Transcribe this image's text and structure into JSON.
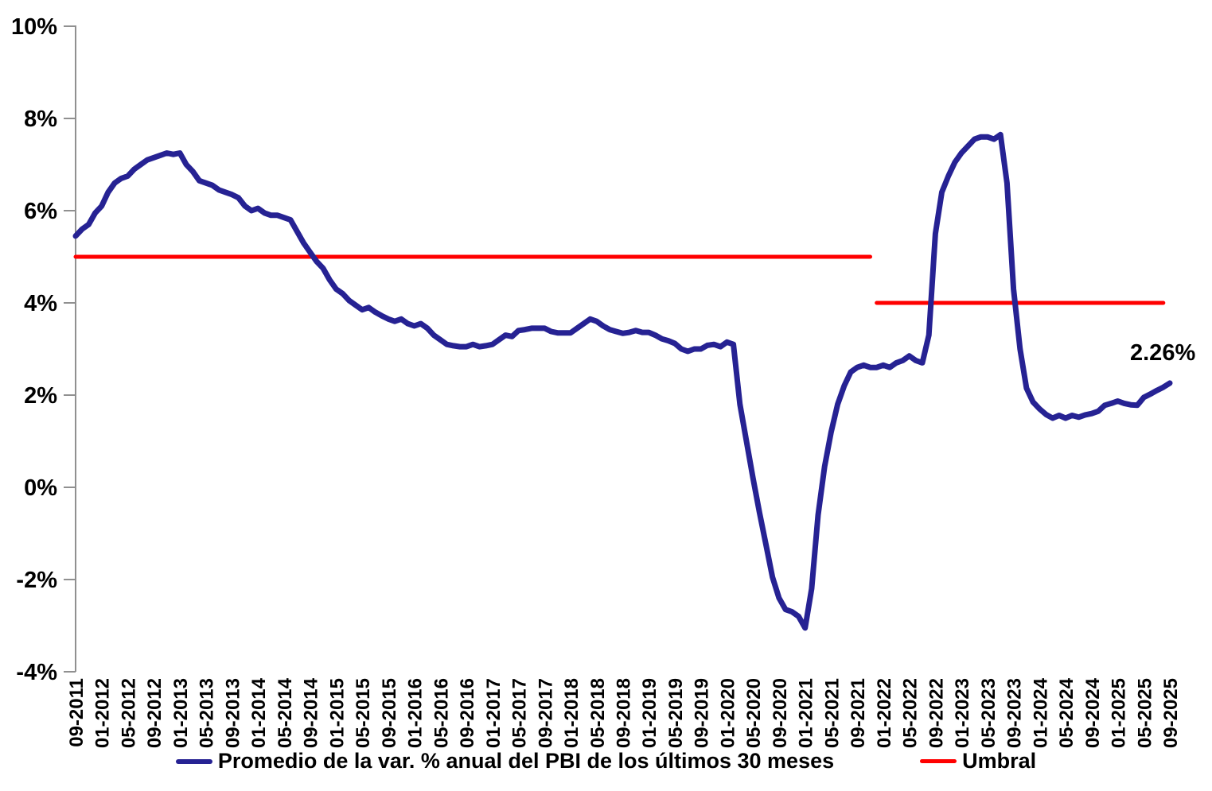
{
  "chart_data": {
    "type": "line",
    "title": "",
    "frequency": "monthly",
    "start_month": "09-2011",
    "end_month": "09-2025",
    "series": [
      {
        "name": "Promedio de la var. % anual del PBI de los últimos 30 meses",
        "color": "#262293",
        "values": [
          5.45,
          5.6,
          5.7,
          5.95,
          6.1,
          6.4,
          6.6,
          6.7,
          6.75,
          6.9,
          7.0,
          7.1,
          7.15,
          7.2,
          7.25,
          7.22,
          7.25,
          7.0,
          6.85,
          6.65,
          6.6,
          6.55,
          6.45,
          6.4,
          6.35,
          6.28,
          6.1,
          6.0,
          6.05,
          5.95,
          5.9,
          5.9,
          5.85,
          5.8,
          5.55,
          5.3,
          5.1,
          4.9,
          4.75,
          4.5,
          4.3,
          4.2,
          4.05,
          3.95,
          3.85,
          3.9,
          3.8,
          3.72,
          3.65,
          3.6,
          3.65,
          3.55,
          3.5,
          3.55,
          3.45,
          3.3,
          3.2,
          3.1,
          3.07,
          3.05,
          3.05,
          3.1,
          3.05,
          3.07,
          3.1,
          3.2,
          3.3,
          3.27,
          3.4,
          3.42,
          3.45,
          3.45,
          3.45,
          3.38,
          3.35,
          3.35,
          3.35,
          3.45,
          3.55,
          3.65,
          3.6,
          3.5,
          3.42,
          3.38,
          3.34,
          3.36,
          3.4,
          3.36,
          3.36,
          3.3,
          3.22,
          3.18,
          3.12,
          3.0,
          2.95,
          3.0,
          3.0,
          3.08,
          3.1,
          3.05,
          3.15,
          3.1,
          1.8,
          1.0,
          0.2,
          -0.55,
          -1.25,
          -1.95,
          -2.4,
          -2.65,
          -2.7,
          -2.8,
          -3.05,
          -2.2,
          -0.6,
          0.45,
          1.2,
          1.8,
          2.2,
          2.5,
          2.6,
          2.65,
          2.6,
          2.6,
          2.65,
          2.6,
          2.7,
          2.75,
          2.85,
          2.75,
          2.7,
          3.3,
          5.5,
          6.4,
          6.75,
          7.05,
          7.25,
          7.4,
          7.55,
          7.6,
          7.6,
          7.55,
          7.65,
          6.6,
          4.3,
          3.0,
          2.15,
          1.85,
          1.7,
          1.58,
          1.5,
          1.56,
          1.5,
          1.56,
          1.52,
          1.57,
          1.6,
          1.65,
          1.78,
          1.82,
          1.87,
          1.82,
          1.79,
          1.78,
          1.95,
          2.02,
          2.1,
          2.17,
          2.26
        ]
      }
    ],
    "threshold_segments": [
      {
        "name": "Umbral",
        "value": 5.0,
        "from": "09-2011",
        "to": "11-2021",
        "color": "#FF0000"
      },
      {
        "name": "Umbral",
        "value": 4.0,
        "from": "12-2021",
        "to": "08-2025",
        "color": "#FF0000"
      }
    ],
    "x_tick_labels": [
      "09-2011",
      "01-2012",
      "05-2012",
      "09-2012",
      "01-2013",
      "05-2013",
      "09-2013",
      "01-2014",
      "05-2014",
      "09-2014",
      "01-2015",
      "05-2015",
      "09-2015",
      "01-2016",
      "05-2016",
      "09-2016",
      "01-2017",
      "05-2017",
      "09-2017",
      "01-2018",
      "05-2018",
      "09-2018",
      "01-2019",
      "05-2019",
      "09-2019",
      "01-2020",
      "05-2020",
      "09-2020",
      "01-2021",
      "05-2021",
      "09-2021",
      "01-2022",
      "05-2022",
      "09-2022",
      "01-2023",
      "05-2023",
      "09-2023",
      "01-2024",
      "05-2024",
      "09-2024",
      "01-2025",
      "05-2025",
      "09-2025"
    ],
    "x_tick_step_months": 4,
    "y_ticks": [
      "10%",
      "8%",
      "6%",
      "4%",
      "2%",
      "0%",
      "-2%",
      "-4%"
    ],
    "y_tick_values": [
      10,
      8,
      6,
      4,
      2,
      0,
      -2,
      -4
    ],
    "ylim": [
      -4,
      10
    ],
    "grid": false,
    "legend_position": "bottom",
    "annotation": {
      "text": "2.26%",
      "month": "09-2025",
      "value": 2.26
    }
  },
  "legend": {
    "series_label": "Promedio de la var. % anual del PBI de los últimos 30 meses",
    "umbral_label": "Umbral"
  },
  "colors": {
    "series": "#262293",
    "umbral": "#FF0000",
    "axis": "#909090",
    "text": "#000000",
    "background": "#FFFFFF"
  }
}
